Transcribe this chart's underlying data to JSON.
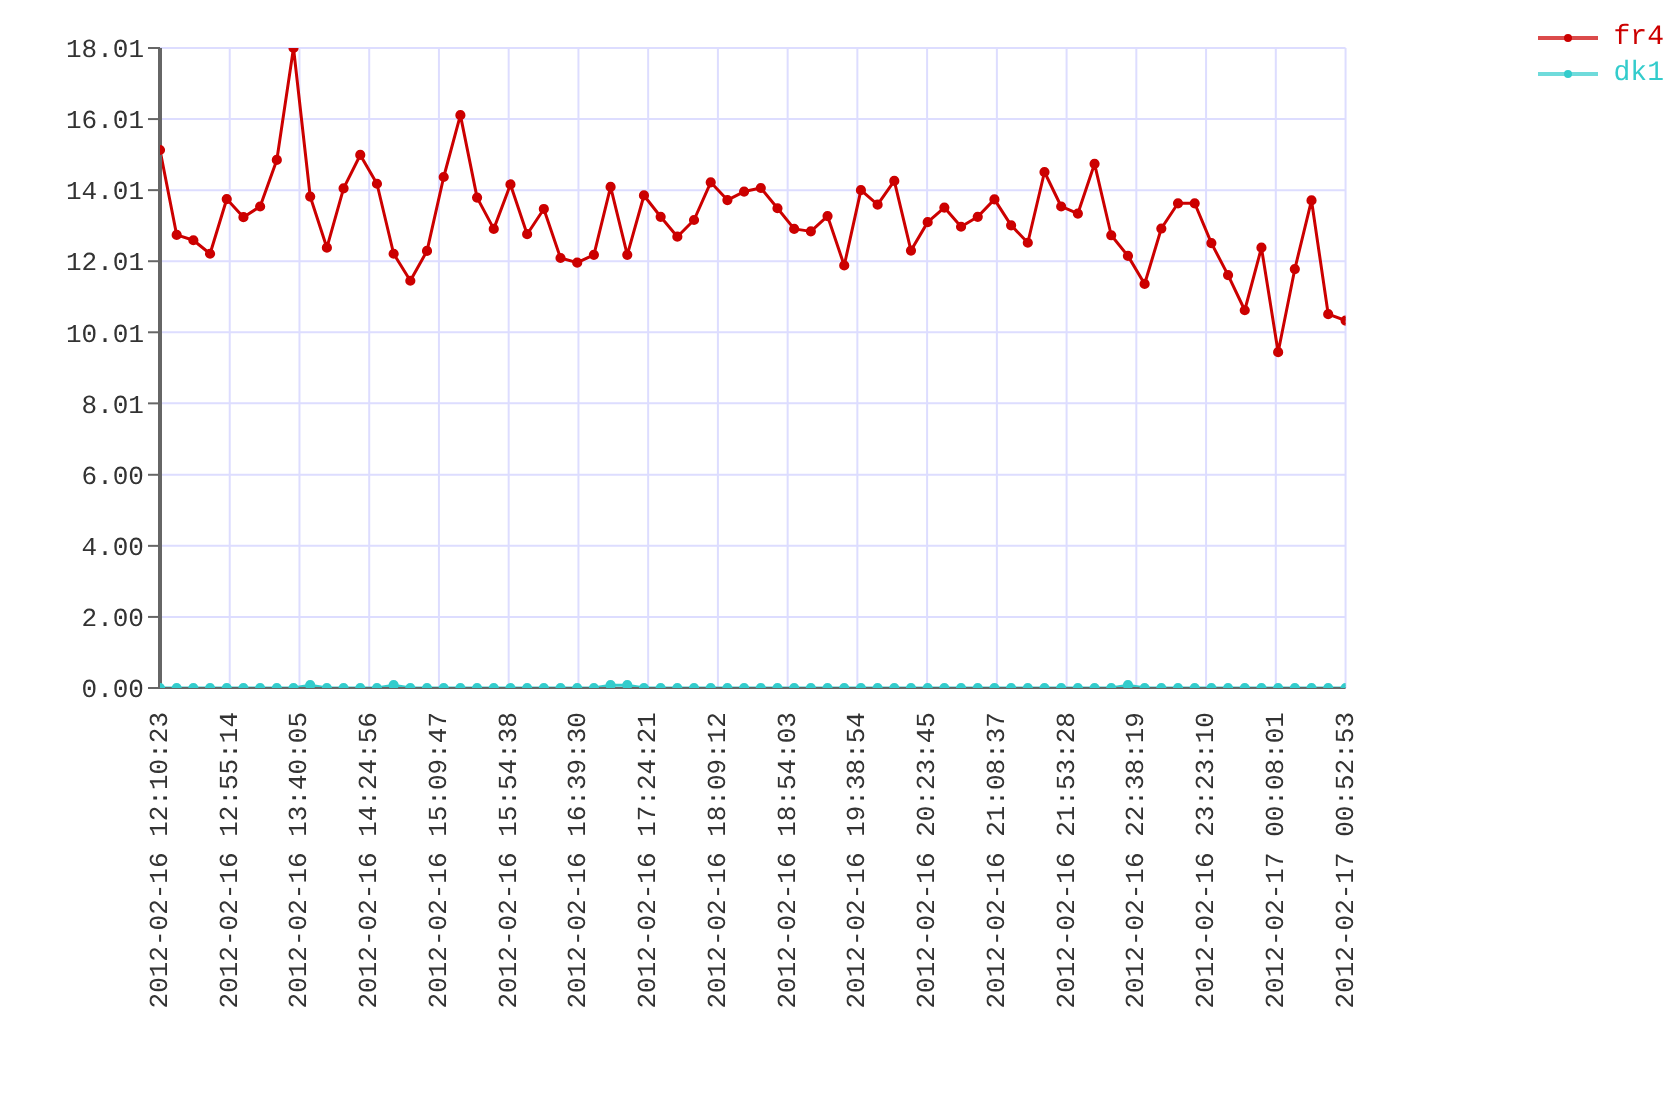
{
  "chart_data": {
    "type": "line",
    "x": [
      "2012-02-16T12:10:23",
      "2012-02-16T12:21:07",
      "2012-02-16T12:31:51",
      "2012-02-16T12:42:35",
      "2012-02-16T12:53:19",
      "2012-02-16T13:04:03",
      "2012-02-16T13:14:47",
      "2012-02-16T13:25:31",
      "2012-02-16T13:36:15",
      "2012-02-16T13:46:59",
      "2012-02-16T13:57:43",
      "2012-02-16T14:08:27",
      "2012-02-16T14:19:11",
      "2012-02-16T14:29:55",
      "2012-02-16T14:40:39",
      "2012-02-16T14:51:23",
      "2012-02-16T15:02:07",
      "2012-02-16T15:12:51",
      "2012-02-16T15:23:35",
      "2012-02-16T15:34:19",
      "2012-02-16T15:45:03",
      "2012-02-16T15:55:47",
      "2012-02-16T16:06:31",
      "2012-02-16T16:17:15",
      "2012-02-16T16:27:59",
      "2012-02-16T16:38:43",
      "2012-02-16T16:49:27",
      "2012-02-16T17:00:11",
      "2012-02-16T17:10:55",
      "2012-02-16T17:21:39",
      "2012-02-16T17:32:23",
      "2012-02-16T17:43:07",
      "2012-02-16T17:53:51",
      "2012-02-16T18:04:35",
      "2012-02-16T18:15:19",
      "2012-02-16T18:26:03",
      "2012-02-16T18:36:47",
      "2012-02-16T18:47:31",
      "2012-02-16T18:58:15",
      "2012-02-16T19:08:59",
      "2012-02-16T19:19:43",
      "2012-02-16T19:30:27",
      "2012-02-16T19:41:11",
      "2012-02-16T19:51:55",
      "2012-02-16T20:02:39",
      "2012-02-16T20:13:23",
      "2012-02-16T20:24:07",
      "2012-02-16T20:34:51",
      "2012-02-16T20:45:35",
      "2012-02-16T20:56:19",
      "2012-02-16T21:07:03",
      "2012-02-16T21:17:47",
      "2012-02-16T21:28:31",
      "2012-02-16T21:39:15",
      "2012-02-16T21:49:59",
      "2012-02-16T22:00:43",
      "2012-02-16T22:11:27",
      "2012-02-16T22:22:11",
      "2012-02-16T22:32:55",
      "2012-02-16T22:43:39",
      "2012-02-16T22:54:23",
      "2012-02-16T23:05:07",
      "2012-02-16T23:15:51",
      "2012-02-16T23:26:35",
      "2012-02-16T23:37:19",
      "2012-02-16T23:48:03",
      "2012-02-16T23:58:47",
      "2012-02-17T00:09:31",
      "2012-02-17T00:20:15",
      "2012-02-17T00:30:59",
      "2012-02-17T00:41:43",
      "2012-02-17T00:52:53"
    ],
    "series": [
      {
        "name": "fr4",
        "color": "#cc0000",
        "values": [
          15.14,
          12.75,
          12.6,
          12.22,
          13.76,
          13.25,
          13.55,
          14.86,
          18.01,
          13.83,
          12.39,
          14.06,
          15.0,
          14.19,
          12.22,
          11.46,
          12.3,
          14.38,
          16.12,
          13.8,
          12.92,
          14.17,
          12.77,
          13.48,
          12.1,
          11.97,
          12.19,
          14.1,
          12.19,
          13.86,
          13.26,
          12.7,
          13.17,
          14.23,
          13.73,
          13.97,
          14.07,
          13.5,
          12.92,
          12.85,
          13.28,
          11.89,
          14.01,
          13.6,
          14.27,
          12.31,
          13.11,
          13.52,
          12.98,
          13.26,
          13.75,
          13.02,
          12.53,
          14.52,
          13.55,
          13.35,
          14.75,
          12.74,
          12.16,
          11.37,
          12.93,
          13.64,
          13.64,
          12.52,
          11.62,
          10.63,
          12.39,
          9.45,
          11.79,
          13.72,
          10.52,
          10.34
        ]
      },
      {
        "name": "dk1",
        "color": "#33cccc",
        "values": [
          0,
          0,
          0,
          0,
          0,
          0,
          0,
          0,
          0,
          0.08,
          0,
          0,
          0,
          0,
          0.08,
          0,
          0,
          0,
          0,
          0,
          0,
          0,
          0,
          0,
          0,
          0,
          0,
          0.08,
          0.08,
          0,
          0,
          0,
          0,
          0,
          0,
          0,
          0,
          0,
          0,
          0,
          0,
          0,
          0,
          0,
          0,
          0,
          0,
          0,
          0,
          0,
          0,
          0,
          0,
          0,
          0,
          0,
          0,
          0,
          0.08,
          0,
          0,
          0,
          0,
          0,
          0,
          0,
          0,
          0,
          0,
          0,
          0,
          0
        ]
      }
    ],
    "xlim": [
      "2012-02-16T12:10:23",
      "2012-02-17T00:52:53"
    ],
    "xticks": [
      {
        "value": "2012-02-16T12:10:23",
        "label": "2012-02-16 12:10:23"
      },
      {
        "value": "2012-02-16T12:55:14",
        "label": "2012-02-16 12:55:14"
      },
      {
        "value": "2012-02-16T13:40:05",
        "label": "2012-02-16 13:40:05"
      },
      {
        "value": "2012-02-16T14:24:56",
        "label": "2012-02-16 14:24:56"
      },
      {
        "value": "2012-02-16T15:09:47",
        "label": "2012-02-16 15:09:47"
      },
      {
        "value": "2012-02-16T15:54:38",
        "label": "2012-02-16 15:54:38"
      },
      {
        "value": "2012-02-16T16:39:30",
        "label": "2012-02-16 16:39:30"
      },
      {
        "value": "2012-02-16T17:24:21",
        "label": "2012-02-16 17:24:21"
      },
      {
        "value": "2012-02-16T18:09:12",
        "label": "2012-02-16 18:09:12"
      },
      {
        "value": "2012-02-16T18:54:03",
        "label": "2012-02-16 18:54:03"
      },
      {
        "value": "2012-02-16T19:38:54",
        "label": "2012-02-16 19:38:54"
      },
      {
        "value": "2012-02-16T20:23:45",
        "label": "2012-02-16 20:23:45"
      },
      {
        "value": "2012-02-16T21:08:37",
        "label": "2012-02-16 21:08:37"
      },
      {
        "value": "2012-02-16T21:53:28",
        "label": "2012-02-16 21:53:28"
      },
      {
        "value": "2012-02-16T22:38:19",
        "label": "2012-02-16 22:38:19"
      },
      {
        "value": "2012-02-16T23:23:10",
        "label": "2012-02-16 23:23:10"
      },
      {
        "value": "2012-02-17T00:08:01",
        "label": "2012-02-17 00:08:01"
      },
      {
        "value": "2012-02-17T00:52:53",
        "label": "2012-02-17 00:52:53"
      }
    ],
    "ylim": [
      0,
      18.01
    ],
    "yticks": [
      {
        "value": 0,
        "label": "0.00"
      },
      {
        "value": 2,
        "label": "2.00"
      },
      {
        "value": 4,
        "label": "4.00"
      },
      {
        "value": 6,
        "label": "6.00"
      },
      {
        "value": 8.01,
        "label": "8.01"
      },
      {
        "value": 10.01,
        "label": "10.01"
      },
      {
        "value": 12.01,
        "label": "12.01"
      },
      {
        "value": 14.01,
        "label": "14.01"
      },
      {
        "value": 16.01,
        "label": "16.01"
      },
      {
        "value": 18.01,
        "label": "18.01"
      }
    ],
    "grid": true,
    "legend": "top right",
    "marker": "circle",
    "line_style": "solid"
  }
}
